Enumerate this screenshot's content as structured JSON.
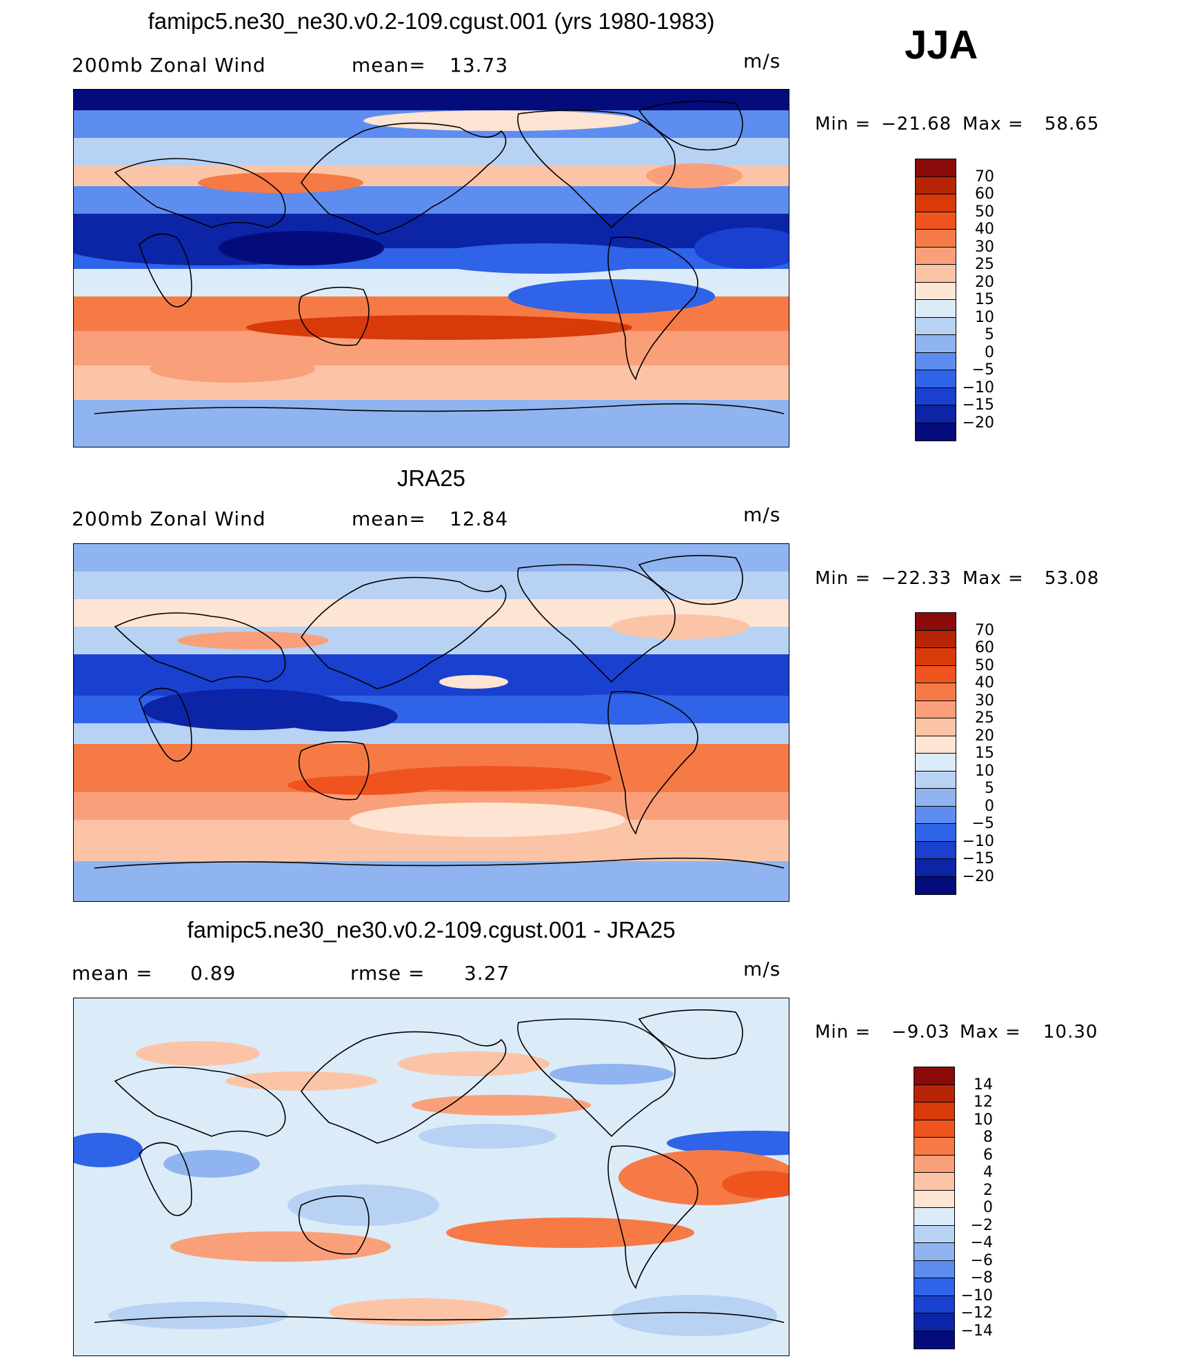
{
  "season": "JJA",
  "units": "m/s",
  "panels": [
    {
      "title": "famipc5.ne30_ne30.v0.2-109.cgust.001 (yrs 1980-1983)",
      "left_label": "200mb Zonal Wind",
      "stat_label": "mean=",
      "stat_value": "13.73",
      "stat2_label": "",
      "stat2_value": "",
      "units": "m/s",
      "min_label": "Min =",
      "min_value": "−21.68",
      "max_label": "Max =",
      "max_value": "58.65",
      "colorbar": [
        "70",
        "60",
        "50",
        "40",
        "30",
        "25",
        "20",
        "15",
        "10",
        "5",
        "0",
        "−5",
        "−10",
        "−15",
        "−20"
      ],
      "colors": [
        "#8b0a0a",
        "#b82406",
        "#d83a0a",
        "#f0541e",
        "#f57a45",
        "#f9a07a",
        "#fbc4a6",
        "#fde4d3",
        "#dcebf8",
        "#b8d2f4",
        "#8fb4f0",
        "#5e8df0",
        "#2f63e8",
        "#1a40d0",
        "#0c24a6",
        "#040c7c"
      ]
    },
    {
      "title": "JRA25",
      "left_label": "200mb Zonal Wind",
      "stat_label": "mean=",
      "stat_value": "12.84",
      "stat2_label": "",
      "stat2_value": "",
      "units": "m/s",
      "min_label": "Min =",
      "min_value": "−22.33",
      "max_label": "Max =",
      "max_value": "53.08",
      "colorbar": [
        "70",
        "60",
        "50",
        "40",
        "30",
        "25",
        "20",
        "15",
        "10",
        "5",
        "0",
        "−5",
        "−10",
        "−15",
        "−20"
      ],
      "colors": [
        "#8b0a0a",
        "#b82406",
        "#d83a0a",
        "#f0541e",
        "#f57a45",
        "#f9a07a",
        "#fbc4a6",
        "#fde4d3",
        "#dcebf8",
        "#b8d2f4",
        "#8fb4f0",
        "#5e8df0",
        "#2f63e8",
        "#1a40d0",
        "#0c24a6",
        "#040c7c"
      ]
    },
    {
      "title": "famipc5.ne30_ne30.v0.2-109.cgust.001 - JRA25",
      "left_label": "mean =",
      "stat_label": "rmse =",
      "stat_value": "3.27",
      "stat2_label": "",
      "stat2_value": "0.89",
      "units": "m/s",
      "min_label": "Min =",
      "min_value": "−9.03",
      "max_label": "Max =",
      "max_value": "10.30",
      "colorbar": [
        "14",
        "12",
        "10",
        "8",
        "6",
        "4",
        "2",
        "0",
        "−2",
        "−4",
        "−6",
        "−8",
        "−10",
        "−12",
        "−14"
      ],
      "colors": [
        "#8b0a0a",
        "#b82406",
        "#d83a0a",
        "#f0541e",
        "#f57a45",
        "#f9a07a",
        "#fbc4a6",
        "#fde4d3",
        "#dcebf8",
        "#b8d2f4",
        "#8fb4f0",
        "#5e8df0",
        "#2f63e8",
        "#1a40d0",
        "#0c24a6",
        "#040c7c"
      ]
    }
  ]
}
